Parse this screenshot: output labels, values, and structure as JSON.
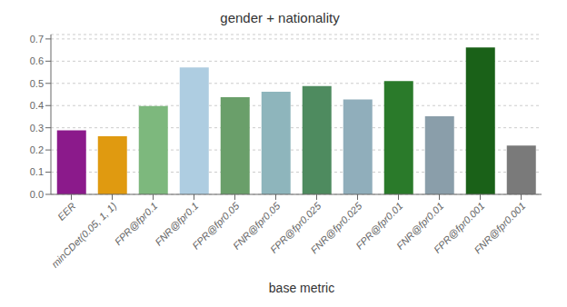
{
  "chart_data": {
    "type": "bar",
    "title": "gender + nationality",
    "xlabel": "base metric",
    "categories": [
      "EER",
      "minCDet(0.05, 1, 1)",
      "FPR@fpr0.1",
      "FNR@fpr0.1",
      "FPR@fpr0.05",
      "FNR@fpr0.05",
      "FPR@fpr0.025",
      "FNR@fpr0.025",
      "FPR@fpr0.01",
      "FNR@fpr0.01",
      "FPR@fpr0.001",
      "FNR@fpr0.001"
    ],
    "values": [
      0.288,
      0.262,
      0.398,
      0.572,
      0.438,
      0.462,
      0.488,
      0.428,
      0.51,
      0.352,
      0.662,
      0.22
    ],
    "colors": [
      "#8B1A8B",
      "#E09A10",
      "#7DB87D",
      "#AECDE1",
      "#6A9F6A",
      "#8EB5BC",
      "#4E8B5F",
      "#90AEBB",
      "#2A7A2A",
      "#8A9EAA",
      "#1A6118",
      "#7A7A7A"
    ],
    "ylim": [
      0.0,
      0.72
    ],
    "yticks": [
      {
        "value": 0.0,
        "label": "0.0"
      },
      0.1,
      0.2,
      0.3,
      0.4,
      0.5,
      0.6,
      0.7
    ],
    "grid": true
  }
}
